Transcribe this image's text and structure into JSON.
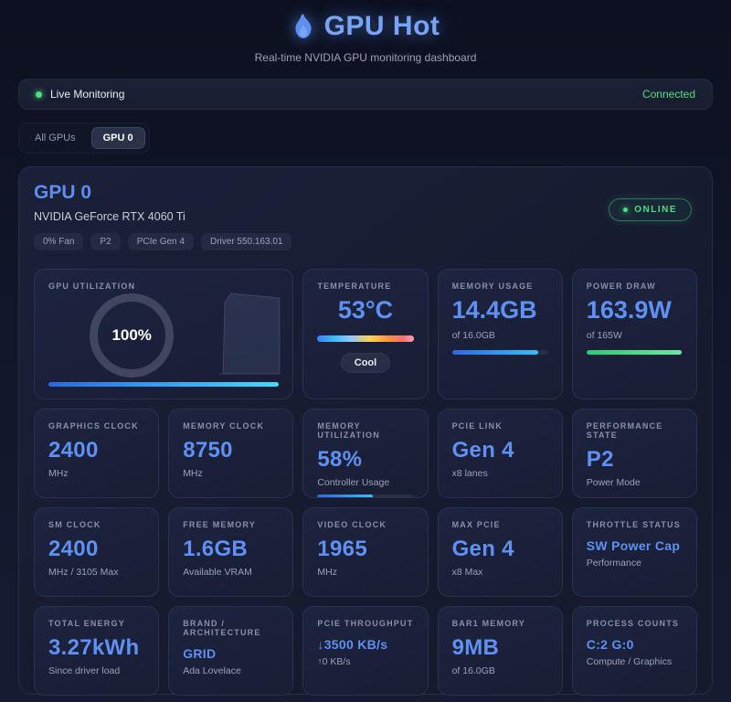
{
  "colors": {
    "accent_blue": "#5d8ef0",
    "accent_green": "#4ade80",
    "bar_cyan": "#38bdf8"
  },
  "header": {
    "title": "GPU Hot",
    "subtitle": "Real-time NVIDIA GPU monitoring dashboard"
  },
  "status_bar": {
    "live_label": "Live Monitoring",
    "connection_status": "Connected"
  },
  "tabs": {
    "all_gpus": "All GPUs",
    "gpu0": "GPU 0"
  },
  "gpu_card": {
    "title": "GPU 0",
    "model": "NVIDIA GeForce RTX 4060 Ti",
    "badges": {
      "fan": "0% Fan",
      "pstate": "P2",
      "pcie": "PCIe Gen 4",
      "driver": "Driver 550.163.01"
    },
    "online": "ONLINE"
  },
  "metrics": {
    "gpu_utilization": {
      "label": "GPU UTILIZATION",
      "value": "100%",
      "percent": 100
    },
    "temperature": {
      "label": "TEMPERATURE",
      "value": "53°C",
      "status": "Cool"
    },
    "memory_usage": {
      "label": "MEMORY USAGE",
      "value": "14.4GB",
      "sub": "of 16.0GB",
      "percent": 90
    },
    "power_draw": {
      "label": "POWER DRAW",
      "value": "163.9W",
      "sub": "of 165W",
      "percent": 99
    },
    "graphics_clock": {
      "label": "GRAPHICS CLOCK",
      "value": "2400",
      "sub": "MHz"
    },
    "memory_clock": {
      "label": "MEMORY CLOCK",
      "value": "8750",
      "sub": "MHz"
    },
    "memory_utilization": {
      "label": "MEMORY UTILIZATION",
      "value": "58%",
      "sub": "Controller Usage",
      "percent": 58
    },
    "pcie_link": {
      "label": "PCIE LINK",
      "value": "Gen 4",
      "sub": "x8 lanes"
    },
    "performance_state": {
      "label": "PERFORMANCE STATE",
      "value": "P2",
      "sub": "Power Mode"
    },
    "sm_clock": {
      "label": "SM CLOCK",
      "value": "2400",
      "sub": "MHz / 3105 Max"
    },
    "free_memory": {
      "label": "FREE MEMORY",
      "value": "1.6GB",
      "sub": "Available VRAM"
    },
    "video_clock": {
      "label": "VIDEO CLOCK",
      "value": "1965",
      "sub": "MHz"
    },
    "max_pcie": {
      "label": "MAX PCIE",
      "value": "Gen 4",
      "sub": "x8 Max"
    },
    "throttle_status": {
      "label": "THROTTLE STATUS",
      "value": "SW Power Cap",
      "sub": "Performance"
    },
    "total_energy": {
      "label": "TOTAL ENERGY",
      "value": "3.27kWh",
      "sub": "Since driver load"
    },
    "brand_architecture": {
      "label": "BRAND / ARCHITECTURE",
      "value": "GRID",
      "sub": "Ada Lovelace"
    },
    "pcie_throughput": {
      "label": "PCIE THROUGHPUT",
      "value": "↓3500 KB/s",
      "sub": "↑0 KB/s"
    },
    "bar1_memory": {
      "label": "BAR1 MEMORY",
      "value": "9MB",
      "sub": "of 16.0GB"
    },
    "process_counts": {
      "label": "PROCESS COUNTS",
      "value": "C:2 G:0",
      "sub": "Compute / Graphics"
    }
  }
}
